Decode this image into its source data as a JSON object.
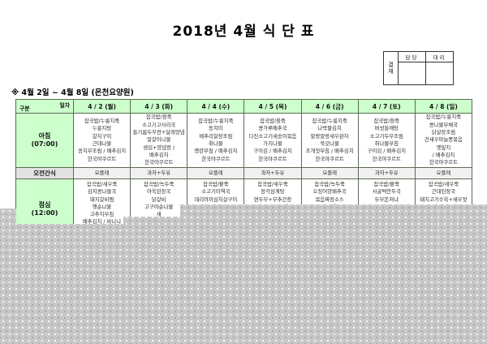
{
  "title": "2018년 4월 식 단 표",
  "week_label": "※ 4월 2일 ~ 4월 8일 (은천요양원)",
  "approval": {
    "row_label_chars": [
      "결",
      "재"
    ],
    "columns": [
      "담당",
      "대리"
    ]
  },
  "table": {
    "corner_top": "일자",
    "corner_bottom": "구분",
    "days": [
      "4 / 2 (월)",
      "4 / 3 (화)",
      "4 / 4 (수)",
      "4 / 5 (목)",
      "4 / 6 (금)",
      "4 / 7 (토)",
      "4 / 8 (일)"
    ],
    "rows": [
      {
        "key": "breakfast",
        "label": "아침",
        "time": "(07:00)",
        "cells": [
          [
            "잡곡밥/누룽지죽",
            "누룽지탕",
            "갈치구이",
            "근대나물",
            "꽁치무조림 / 배추김치",
            "한국야쿠르트"
          ],
          [
            "잡곡밥/흰죽",
            "소고기고사리국",
            "들기름두부전+달래양념",
            "얼갈이나물",
            "생김+양념장 /",
            "배추김치",
            "한국야쿠르트"
          ],
          [
            "잡곡밥/누룽지죽",
            "동치미",
            "메추리알장조림",
            "취나물",
            "명란무침 / 배추김치",
            "한국야쿠르트"
          ],
          [
            "잡곡밥/흰죽",
            "콩가루배추국",
            "다진소고기새송이볶음",
            "가지나물",
            "구이김 / 배추김치",
            "한국야쿠르트"
          ],
          [
            "잡곡밥/누룽지죽",
            "나박물김치",
            "말랑말랑새우완자",
            "쑥갓나물",
            "조개젓무침 / 배추김치",
            "한국야쿠르트"
          ],
          [
            "잡곡밥/흰죽",
            "버섯들깨탕",
            "소고기두부조림",
            "취나물무침",
            "구이김 / 배추김치",
            "한국야쿠르트"
          ],
          [
            "잡곡밥/누룽지죽",
            "콩나물무채국",
            "닭살장조림",
            "건새우마늘쫑볶음",
            "깻잎지",
            "/ 배추김치",
            "한국야쿠르트"
          ]
        ]
      },
      {
        "key": "snack",
        "label": "오전간식",
        "time": "",
        "cells": [
          [
            "요플레"
          ],
          [
            "과자+두유"
          ],
          [
            "요플레"
          ],
          [
            "과자+두유"
          ],
          [
            "요플레"
          ],
          [
            "과자+두유"
          ],
          [
            "요플레"
          ]
        ]
      },
      {
        "key": "lunch",
        "label": "점심",
        "time": "(12:00)",
        "cells": [
          [
            "잡곡밥/새우죽",
            "김치콩나물국",
            "돼지갈비찜",
            "햇순나물",
            "고추지무침",
            "배추김치 / 바나나"
          ],
          [
            "잡곡밥/녹두죽",
            "아욱된장국",
            "닭갈비",
            "고구마순나물",
            "새"
          ],
          [
            "잡곡밥/팥죽",
            "소고기미역국",
            "데리야끼삼치살구이",
            "단호박샐러드"
          ],
          [
            "잡곡밥/새우죽",
            "장각삼계탕",
            "연두부+부추간장",
            "어묵굴소스볶음"
          ],
          [
            "잡곡밥/녹두죽",
            "오징어양배추국",
            "볶음짜장소스",
            "탕수육"
          ],
          [
            "잡곡밥/팥죽",
            "사골떡만두국",
            "두부돈저냐",
            "도토리묵무침"
          ],
          [
            "잡곡밥/새우죽",
            "근대된장국",
            "돼지고기수육+새우젓",
            "부추양파무침"
          ]
        ]
      }
    ]
  },
  "colors": {
    "header_green": "#ccffcc",
    "snack_gray": "#f1f1f1",
    "border_green": "#5c6b54",
    "torn_area_gray": "#c7c7c7"
  }
}
